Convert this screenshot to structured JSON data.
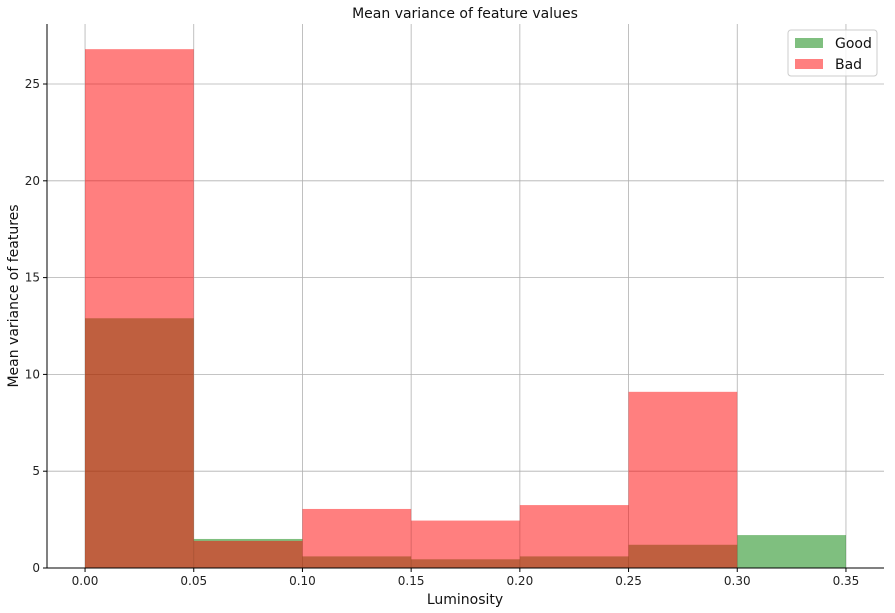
{
  "chart_data": {
    "type": "bar",
    "subtype": "overlapping-histogram",
    "title": "Mean variance of feature values",
    "xlabel": "Luminosity",
    "ylabel": "Mean variance of features",
    "bin_edges": [
      0.0,
      0.05,
      0.1,
      0.15,
      0.2,
      0.25,
      0.3,
      0.35
    ],
    "xlim": [
      -0.0175,
      0.3675
    ],
    "ylim": [
      0,
      28.1
    ],
    "xticks": [
      0.0,
      0.05,
      0.1,
      0.15,
      0.2,
      0.25,
      0.3,
      0.35
    ],
    "xtick_labels": [
      "0.00",
      "0.05",
      "0.10",
      "0.15",
      "0.20",
      "0.25",
      "0.30",
      "0.35"
    ],
    "yticks": [
      0,
      5,
      10,
      15,
      20,
      25
    ],
    "ytick_labels": [
      "0",
      "5",
      "10",
      "15",
      "20",
      "25"
    ],
    "grid": true,
    "legend_position": "top-right",
    "series": [
      {
        "name": "Good",
        "color": "#008000",
        "alpha": 0.5,
        "values": [
          12.9,
          1.5,
          0.6,
          0.45,
          0.6,
          1.2,
          1.7
        ]
      },
      {
        "name": "Bad",
        "color": "#ff0000",
        "alpha": 0.5,
        "values": [
          26.8,
          1.4,
          3.05,
          2.45,
          3.25,
          9.1,
          0.0
        ]
      }
    ]
  }
}
